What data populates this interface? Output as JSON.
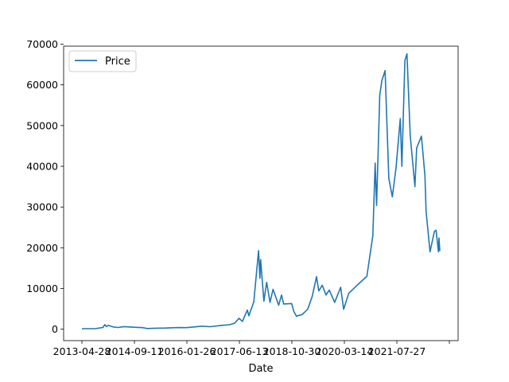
{
  "chart_data": {
    "type": "line",
    "title": "",
    "xlabel": "Date",
    "ylabel": "",
    "grid": false,
    "legend_position": "upper-left",
    "ylim": [
      -2800,
      69500
    ],
    "x_tick_labels": [
      "2013-04-28",
      "2014-09-11",
      "2016-01-26",
      "2017-06-13",
      "2018-10-30",
      "2020-03-14",
      "2021-07-27",
      ""
    ],
    "y_ticks": [
      0,
      10000,
      20000,
      30000,
      40000,
      50000,
      60000,
      70000
    ],
    "y_tick_labels": [
      "0",
      "10000",
      "20000",
      "30000",
      "40000",
      "50000",
      "60000",
      "70000"
    ],
    "series": [
      {
        "name": "Price",
        "color": "#1f77b4",
        "points": [
          [
            "2013-04-28",
            135
          ],
          [
            "2013-09-01",
            130
          ],
          [
            "2013-11-15",
            420
          ],
          [
            "2013-12-04",
            1130
          ],
          [
            "2013-12-20",
            650
          ],
          [
            "2014-01-06",
            950
          ],
          [
            "2014-02-25",
            550
          ],
          [
            "2014-04-10",
            430
          ],
          [
            "2014-06-05",
            640
          ],
          [
            "2014-09-11",
            480
          ],
          [
            "2014-12-01",
            380
          ],
          [
            "2015-01-14",
            175
          ],
          [
            "2015-04-01",
            250
          ],
          [
            "2015-07-10",
            290
          ],
          [
            "2015-11-04",
            400
          ],
          [
            "2016-01-26",
            390
          ],
          [
            "2016-06-17",
            740
          ],
          [
            "2016-09-10",
            620
          ],
          [
            "2016-12-31",
            960
          ],
          [
            "2017-03-15",
            1100
          ],
          [
            "2017-05-01",
            1500
          ],
          [
            "2017-06-13",
            2700
          ],
          [
            "2017-07-15",
            1900
          ],
          [
            "2017-08-31",
            4700
          ],
          [
            "2017-09-15",
            3300
          ],
          [
            "2017-11-01",
            6700
          ],
          [
            "2017-12-17",
            19300
          ],
          [
            "2017-12-30",
            12500
          ],
          [
            "2018-01-06",
            17100
          ],
          [
            "2018-02-06",
            6900
          ],
          [
            "2018-03-05",
            11500
          ],
          [
            "2018-04-06",
            6600
          ],
          [
            "2018-05-05",
            9800
          ],
          [
            "2018-06-28",
            5900
          ],
          [
            "2018-07-25",
            8400
          ],
          [
            "2018-08-14",
            6200
          ],
          [
            "2018-10-30",
            6300
          ],
          [
            "2018-11-20",
            4400
          ],
          [
            "2018-12-15",
            3200
          ],
          [
            "2019-02-08",
            3600
          ],
          [
            "2019-04-02",
            4900
          ],
          [
            "2019-05-15",
            8000
          ],
          [
            "2019-06-26",
            12900
          ],
          [
            "2019-07-17",
            9400
          ],
          [
            "2019-08-20",
            10800
          ],
          [
            "2019-09-25",
            8400
          ],
          [
            "2019-10-26",
            9600
          ],
          [
            "2019-12-17",
            6600
          ],
          [
            "2020-02-12",
            10300
          ],
          [
            "2020-03-12",
            4900
          ],
          [
            "2020-04-30",
            8800
          ],
          [
            "2020-07-27",
            11000
          ],
          [
            "2020-10-21",
            13000
          ],
          [
            "2020-12-17",
            23000
          ],
          [
            "2021-01-08",
            40800
          ],
          [
            "2021-01-22",
            30400
          ],
          [
            "2021-02-21",
            57500
          ],
          [
            "2021-03-13",
            61000
          ],
          [
            "2021-04-13",
            63500
          ],
          [
            "2021-05-19",
            37000
          ],
          [
            "2021-06-22",
            32500
          ],
          [
            "2021-07-27",
            39500
          ],
          [
            "2021-09-06",
            51700
          ],
          [
            "2021-09-21",
            40000
          ],
          [
            "2021-10-20",
            66000
          ],
          [
            "2021-11-09",
            67600
          ],
          [
            "2021-12-10",
            47600
          ],
          [
            "2022-01-24",
            35000
          ],
          [
            "2022-02-10",
            44500
          ],
          [
            "2022-03-28",
            47400
          ],
          [
            "2022-04-30",
            37700
          ],
          [
            "2022-05-12",
            28800
          ],
          [
            "2022-06-18",
            19000
          ],
          [
            "2022-07-30",
            24000
          ],
          [
            "2022-08-15",
            24300
          ],
          [
            "2022-09-07",
            19000
          ],
          [
            "2022-09-12",
            22400
          ],
          [
            "2022-09-20",
            19200
          ]
        ]
      }
    ]
  }
}
